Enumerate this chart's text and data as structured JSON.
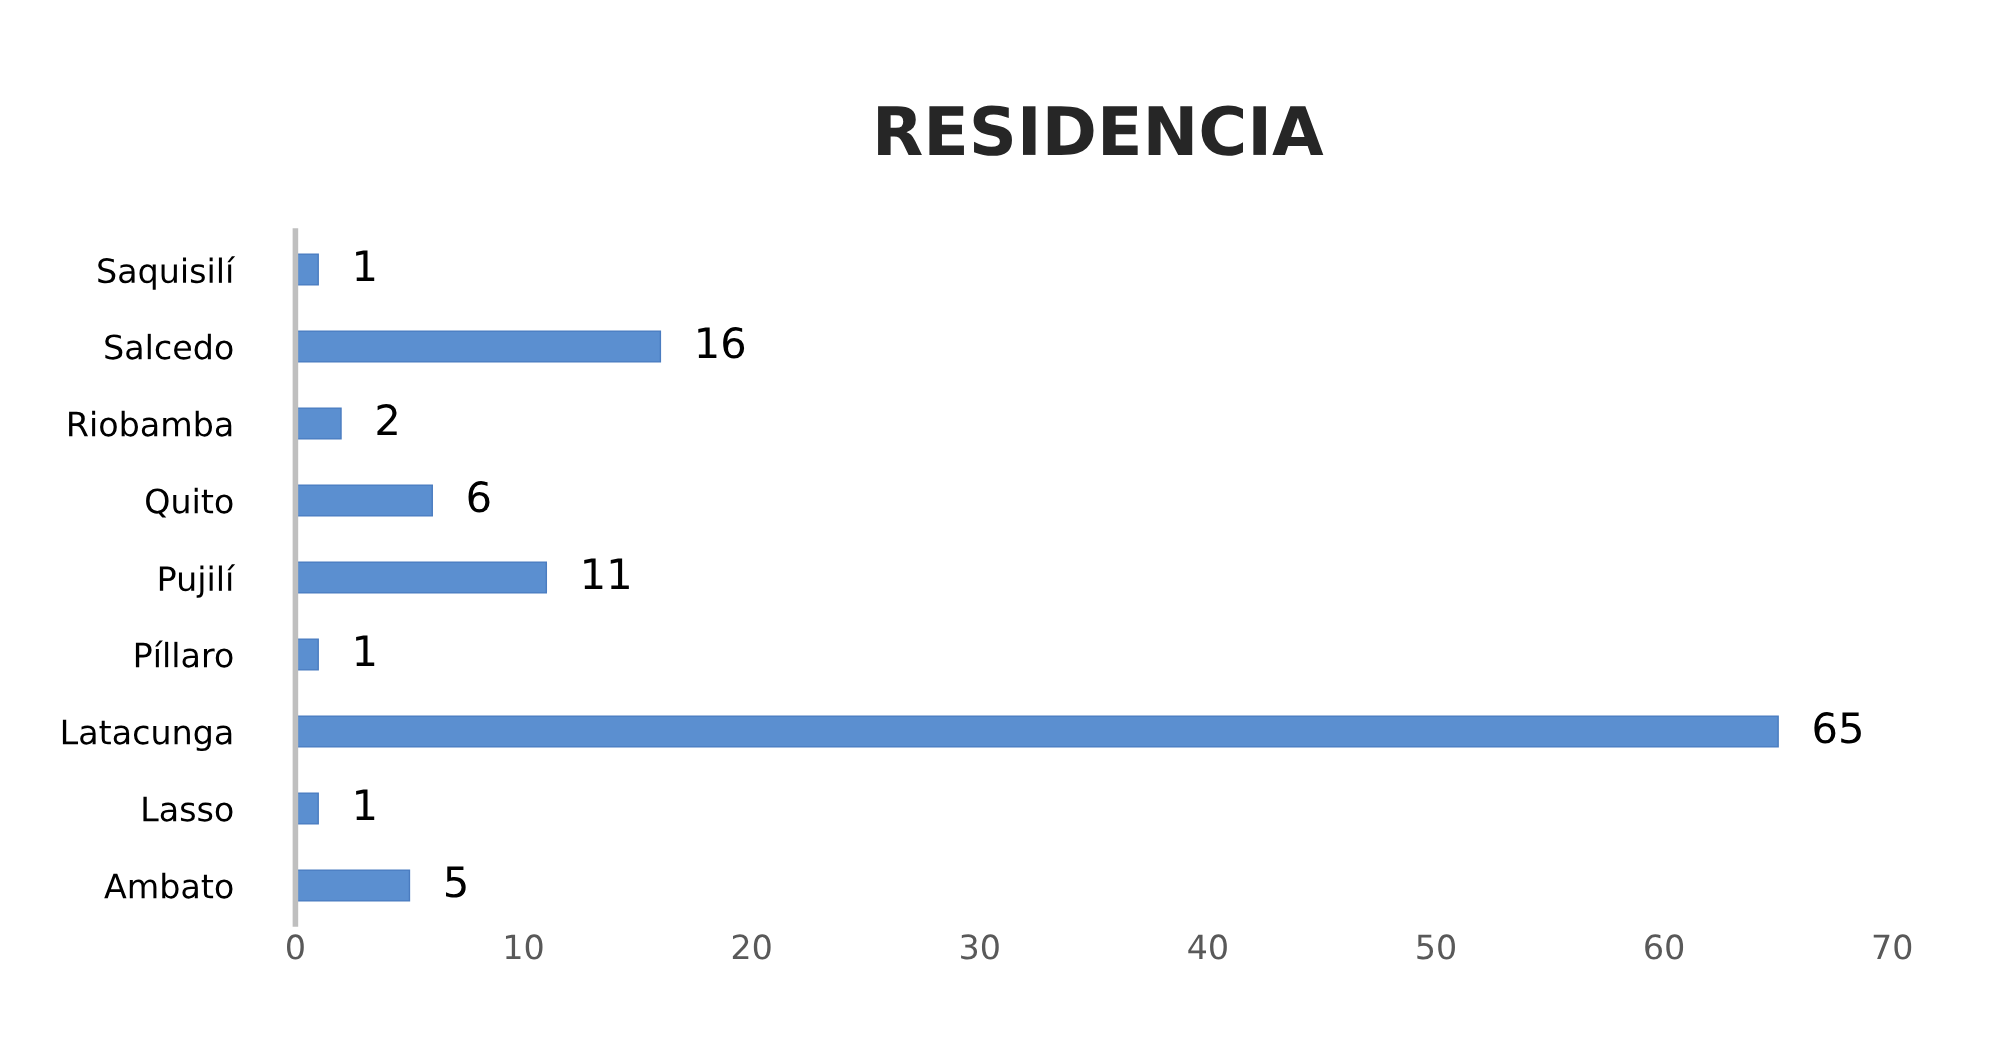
{
  "chart_data": {
    "type": "bar",
    "orientation": "horizontal",
    "title": "RESIDENCIA",
    "categories": [
      "Saquisilí",
      "Salcedo",
      "Riobamba",
      "Quito",
      "Pujilí",
      "Píllaro",
      "Latacunga",
      "Lasso",
      "Ambato"
    ],
    "values": [
      1,
      16,
      2,
      6,
      11,
      1,
      65,
      1,
      5
    ],
    "color": "#5b8fd0",
    "xlim": [
      0,
      70
    ],
    "xticks": [
      0,
      10,
      20,
      30,
      40,
      50,
      60,
      70
    ],
    "grid": false,
    "legend": false,
    "data_labels": true
  }
}
